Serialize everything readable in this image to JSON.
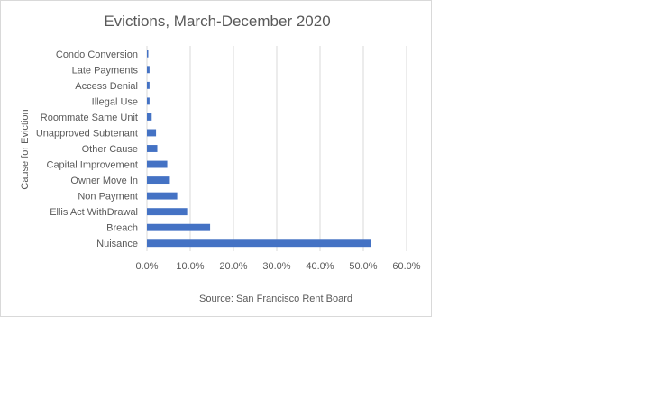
{
  "chart_data": {
    "type": "bar",
    "orientation": "horizontal",
    "title": "Evictions, March-December 2020",
    "ylabel": "Cause for Eviction",
    "xlabel": "",
    "source": "Source: San Francisco Rent Board",
    "categories": [
      "Condo Conversion",
      "Late Payments",
      "Access Denial",
      "Illegal Use",
      "Roommate Same Unit",
      "Unapproved Subtenant",
      "Other Cause",
      "Capital Improvement",
      "Owner Move In",
      "Non Payment",
      "Ellis Act WithDrawal",
      "Breach",
      "Nuisance"
    ],
    "values": [
      0.2,
      0.6,
      0.6,
      0.6,
      1.1,
      2.1,
      2.4,
      4.7,
      5.3,
      7.0,
      9.3,
      14.6,
      51.8
    ],
    "xlim": [
      0,
      60
    ],
    "xticks": [
      "0.0%",
      "10.0%",
      "20.0%",
      "30.0%",
      "40.0%",
      "50.0%",
      "60.0%"
    ],
    "grid": "vertical",
    "legend": "none",
    "bar_color": "#4472c4",
    "grid_color": "#d9d9d9"
  }
}
